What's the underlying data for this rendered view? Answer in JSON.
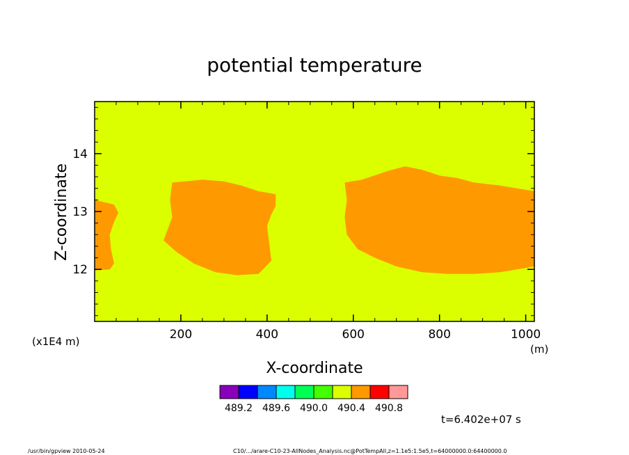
{
  "chart_data": {
    "type": "heatmap",
    "title": "potential temperature",
    "xlabel": "X-coordinate",
    "ylabel": "Z-coordinate",
    "x_unit": "(m)",
    "y_unit": "(x1E4 m)",
    "xlim": [
      0,
      1020
    ],
    "ylim": [
      11.1,
      14.9
    ],
    "x_ticks": [
      200,
      400,
      600,
      800,
      1000
    ],
    "x_tick_labels": [
      "200",
      "400",
      "600",
      "800",
      "1000"
    ],
    "y_ticks": [
      12,
      13,
      14
    ],
    "y_tick_labels": [
      "12",
      "13",
      "14"
    ],
    "background_level": "490.0–490.4",
    "background_color": "#dcff00",
    "anomaly_level": "490.4–490.8",
    "anomaly_color": "#ff9900",
    "regions": [
      {
        "name": "left-edge-blob",
        "outline": [
          [
            0,
            13.2
          ],
          [
            45,
            13.12
          ],
          [
            55,
            12.98
          ],
          [
            45,
            12.82
          ],
          [
            35,
            12.6
          ],
          [
            38,
            12.35
          ],
          [
            45,
            12.1
          ],
          [
            35,
            12.0
          ],
          [
            0,
            11.98
          ]
        ]
      },
      {
        "name": "center-left-blob",
        "outline": [
          [
            180,
            13.5
          ],
          [
            210,
            13.52
          ],
          [
            250,
            13.55
          ],
          [
            300,
            13.52
          ],
          [
            340,
            13.45
          ],
          [
            380,
            13.35
          ],
          [
            420,
            13.3
          ],
          [
            420,
            13.1
          ],
          [
            410,
            12.95
          ],
          [
            400,
            12.75
          ],
          [
            405,
            12.45
          ],
          [
            410,
            12.15
          ],
          [
            380,
            11.92
          ],
          [
            330,
            11.9
          ],
          [
            280,
            11.95
          ],
          [
            230,
            12.1
          ],
          [
            190,
            12.3
          ],
          [
            160,
            12.5
          ],
          [
            170,
            12.7
          ],
          [
            180,
            12.9
          ],
          [
            175,
            13.2
          ]
        ]
      },
      {
        "name": "right-blob",
        "outline": [
          [
            580,
            13.5
          ],
          [
            620,
            13.55
          ],
          [
            680,
            13.7
          ],
          [
            720,
            13.78
          ],
          [
            760,
            13.72
          ],
          [
            800,
            13.62
          ],
          [
            840,
            13.58
          ],
          [
            880,
            13.5
          ],
          [
            940,
            13.45
          ],
          [
            980,
            13.4
          ],
          [
            1020,
            13.35
          ],
          [
            1020,
            12.05
          ],
          [
            980,
            12.0
          ],
          [
            940,
            11.95
          ],
          [
            880,
            11.92
          ],
          [
            820,
            11.92
          ],
          [
            760,
            11.95
          ],
          [
            700,
            12.05
          ],
          [
            650,
            12.2
          ],
          [
            610,
            12.35
          ],
          [
            585,
            12.6
          ],
          [
            580,
            12.9
          ],
          [
            585,
            13.2
          ]
        ]
      }
    ],
    "colorbar": {
      "colors": [
        "#8800bb",
        "#0000ff",
        "#0088ff",
        "#00ffee",
        "#00ff55",
        "#44ff00",
        "#dcff00",
        "#ff9900",
        "#ff0000",
        "#ff9999"
      ],
      "labels": [
        "489.2",
        "489.6",
        "490.0",
        "490.4",
        "490.8"
      ]
    }
  },
  "annotations": {
    "time": "t=6.402e+07 s",
    "footer_left": "/usr/bin/gpview  2010-05-24",
    "footer_right": "C10/.../arare-C10-23-AllNodes_Analysis.nc@PotTempAll,z=1.1e5:1.5e5,t=64000000.0:64400000.0"
  }
}
